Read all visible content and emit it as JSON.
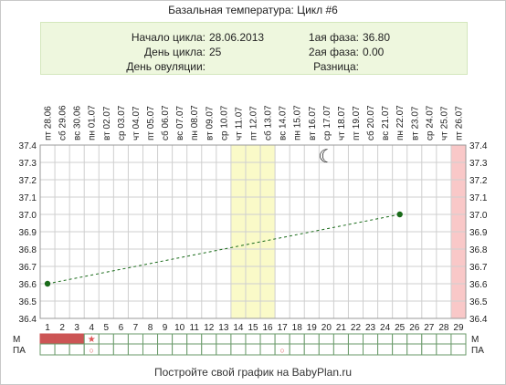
{
  "title": "Базальная температура: Цикл #6",
  "info": {
    "cycle_start_label": "Начало цикла:",
    "cycle_start_value": "28.06.2013",
    "cycle_day_label": "День цикла:",
    "cycle_day_value": "25",
    "ovulation_day_label": "День овуляции:",
    "ovulation_day_value": "",
    "phase1_label": "1ая фаза:",
    "phase1_value": "36.80",
    "phase2_label": "2ая фаза:",
    "phase2_value": "0.00",
    "difference_label": "Разница:",
    "difference_value": ""
  },
  "chart_data": {
    "type": "line",
    "x": [
      1,
      2,
      3,
      4,
      5,
      6,
      7,
      8,
      9,
      10,
      11,
      12,
      13,
      14,
      15,
      16,
      17,
      18,
      19,
      20,
      21,
      22,
      23,
      24,
      25,
      26,
      27,
      28,
      29
    ],
    "weekdays": [
      "пт",
      "сб",
      "вс",
      "пн",
      "вт",
      "ср",
      "чт",
      "пт",
      "сб",
      "вс",
      "пн",
      "вт",
      "ср",
      "чт",
      "пт",
      "сб",
      "вс",
      "пн",
      "вт",
      "ср",
      "чт",
      "пт",
      "сб",
      "вс",
      "пн",
      "вт",
      "ср",
      "чт",
      "пт"
    ],
    "dates": [
      "28.06",
      "29.06",
      "30.06",
      "01.07",
      "02.07",
      "03.07",
      "04.07",
      "05.07",
      "06.07",
      "07.07",
      "08.07",
      "09.07",
      "10.07",
      "11.07",
      "12.07",
      "13.07",
      "14.07",
      "15.07",
      "16.07",
      "17.07",
      "18.07",
      "19.07",
      "20.07",
      "21.07",
      "22.07",
      "23.07",
      "24.07",
      "25.07",
      "26.07"
    ],
    "y_ticks": [
      "37.4",
      "37.3",
      "37.2",
      "37.1",
      "37.0",
      "36.9",
      "36.8",
      "36.7",
      "36.6",
      "36.5",
      "36.4"
    ],
    "ylim": [
      36.4,
      37.4
    ],
    "series": [
      {
        "points": [
          {
            "x": 1,
            "y": 36.6
          },
          {
            "x": 25,
            "y": 37.0
          }
        ],
        "color": "#1a6b1a",
        "style": "dashed"
      }
    ],
    "highlight_days": [
      14,
      15,
      16
    ],
    "highlight_color": "#fafac8",
    "end_day": 29,
    "end_color": "#f9c8c8",
    "moon_day": 20,
    "moon_symbol": "☾",
    "bottom_rows": {
      "row1_label": "М",
      "row2_label": "ПА",
      "menstruation_days": [
        1,
        2,
        3
      ],
      "menstruation_color": "#cc5555",
      "star_day": 4,
      "star_symbol": "★",
      "circle_days": [
        4,
        17
      ],
      "circle_symbol": "○",
      "marker_color": "#dd5555"
    },
    "grid": true
  },
  "footer": "Постройте свой график на BabyPlan.ru"
}
